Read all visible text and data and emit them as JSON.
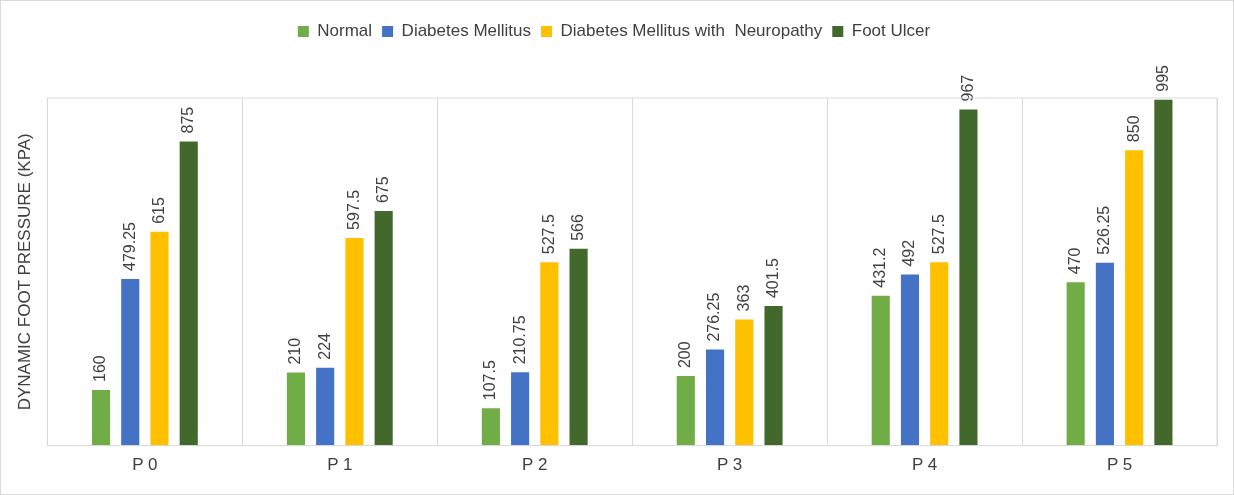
{
  "chart_data": {
    "type": "bar",
    "ylabel": "DYNAMIC FOOT PRESSURE (KPA)",
    "categories": [
      "P 0",
      "P 1",
      "P 2",
      "P 3",
      "P 4",
      "P 5"
    ],
    "series": [
      {
        "name": "Normal",
        "color": "#70ad47",
        "values": [
          160,
          210,
          107.5,
          200,
          431.2,
          470
        ]
      },
      {
        "name": "Diabetes Mellitus",
        "color": "#4472c4",
        "values": [
          479.25,
          224,
          210.75,
          276.25,
          492,
          526.25
        ]
      },
      {
        "name": "Diabetes Mellitus with  Neuropathy",
        "color": "#ffc000",
        "values": [
          615,
          597.5,
          527.5,
          363,
          527.5,
          850
        ]
      },
      {
        "name": "Foot Ulcer",
        "color": "#43682b",
        "values": [
          875,
          675,
          566,
          401.5,
          967,
          995
        ]
      }
    ],
    "ylim": [
      0,
      1000
    ],
    "data_labels": true,
    "grid": "x",
    "legend": "top",
    "tick_labels": "x"
  }
}
